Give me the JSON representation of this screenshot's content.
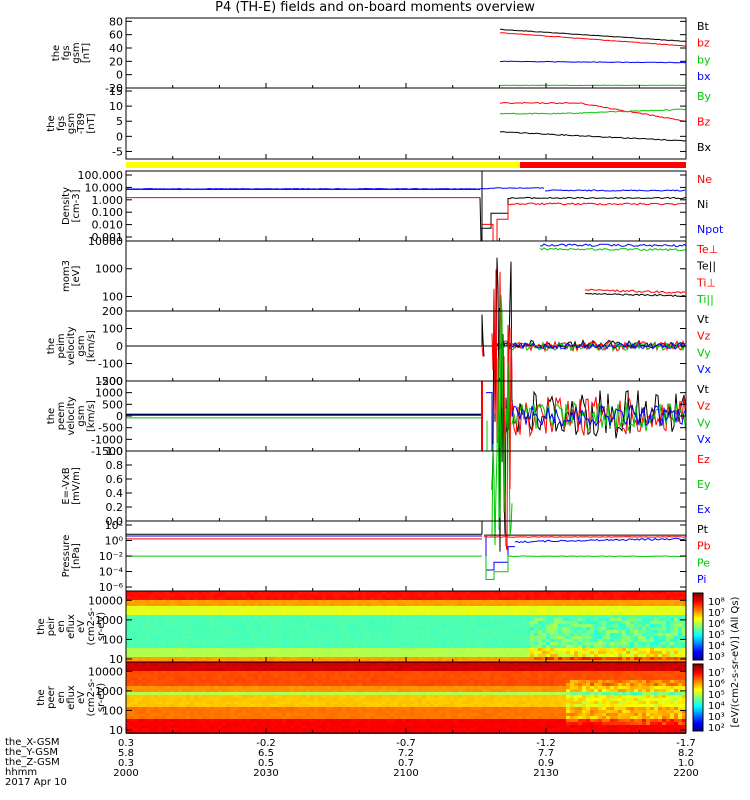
{
  "title": "P4 (TH-E) fields and on-board moments overview",
  "date_label": "2017 Apr 10",
  "colors": {
    "black": "#000000",
    "red": "#ff0000",
    "green": "#00c800",
    "blue": "#0000ff",
    "yellow": "#ffff00"
  },
  "chart_data": [
    {
      "type": "line",
      "panel": "fgs_gsm",
      "ylabel": [
        "the",
        "fgs",
        "gsm",
        "[nT]"
      ],
      "yticks": [
        80,
        60,
        40,
        20,
        0,
        -20
      ],
      "ylim": [
        -20,
        85
      ],
      "series": [
        {
          "name": "Bt",
          "color": "#000000"
        },
        {
          "name": "bz",
          "color": "#ff0000"
        },
        {
          "name": "by",
          "color": "#00c800"
        },
        {
          "name": "bx",
          "color": "#0000ff"
        }
      ]
    },
    {
      "type": "line",
      "panel": "fgs_gsm_dtrend",
      "ylabel": [
        "the",
        "fgs",
        "gsm",
        "-T89",
        "[nT]"
      ],
      "yticks": [
        15,
        10,
        5,
        0,
        -5
      ],
      "ylim": [
        -7.5,
        16
      ],
      "series": [
        {
          "name": "By",
          "color": "#00c800"
        },
        {
          "name": "Bz",
          "color": "#ff0000"
        },
        {
          "name": "Bx",
          "color": "#000000"
        }
      ]
    },
    {
      "type": "line",
      "panel": "density",
      "ylabel": [
        "Density",
        "[cm-3]"
      ],
      "yticks": [
        "100.000",
        "10.000",
        "1.000",
        "0.100",
        "0.010",
        "0.001"
      ],
      "ylim": [
        0.001,
        300
      ],
      "scale": "log",
      "series": [
        {
          "name": "Ne",
          "color": "#ff0000"
        },
        {
          "name": "Ni",
          "color": "#000000"
        },
        {
          "name": "Npot",
          "color": "#0000ff"
        }
      ]
    },
    {
      "type": "line",
      "panel": "temperature",
      "ylabel": [
        "mom3",
        "[eV]"
      ],
      "yticks": [
        10000,
        1000,
        100
      ],
      "ylim": [
        30,
        10000
      ],
      "scale": "log",
      "series": [
        {
          "name": "Te⊥",
          "color": "#ff0000"
        },
        {
          "name": "Te||",
          "color": "#000000"
        },
        {
          "name": "Ti⊥",
          "color": "#ff0000"
        },
        {
          "name": "Ti||",
          "color": "#00c800"
        }
      ]
    },
    {
      "type": "line",
      "panel": "peim_velocity",
      "ylabel": [
        "the",
        "peim",
        "velocity",
        "gsm",
        "[km/s]"
      ],
      "yticks": [
        200,
        100,
        0,
        -100,
        -200
      ],
      "ylim": [
        -200,
        200
      ],
      "series": [
        {
          "name": "Vt",
          "color": "#000000"
        },
        {
          "name": "Vz",
          "color": "#ff0000"
        },
        {
          "name": "Vy",
          "color": "#00c800"
        },
        {
          "name": "Vx",
          "color": "#0000ff"
        }
      ]
    },
    {
      "type": "line",
      "panel": "peem_velocity",
      "ylabel": [
        "the",
        "peem",
        "velocity",
        "gsm",
        "[km/s]"
      ],
      "yticks": [
        1500,
        1000,
        500,
        0,
        -500,
        -1000,
        -1500
      ],
      "ylim": [
        -1500,
        1500
      ],
      "series": [
        {
          "name": "Vt",
          "color": "#000000"
        },
        {
          "name": "Vz",
          "color": "#ff0000"
        },
        {
          "name": "Vy",
          "color": "#00c800"
        },
        {
          "name": "Vx",
          "color": "#0000ff"
        }
      ]
    },
    {
      "type": "line",
      "panel": "efield",
      "ylabel": [
        "E=-VxB",
        "[mV/m]"
      ],
      "yticks": [
        "1.0",
        "0.8",
        "0.6",
        "0.4",
        "0.2",
        "0.0"
      ],
      "ylim": [
        0,
        1
      ],
      "series": [
        {
          "name": "Ez",
          "color": "#ff0000"
        },
        {
          "name": "Ey",
          "color": "#00c800"
        },
        {
          "name": "Ex",
          "color": "#0000ff"
        }
      ]
    },
    {
      "type": "line",
      "panel": "pressure",
      "ylabel": [
        "Pressure",
        "[nPa]"
      ],
      "yticks": [
        "10²",
        "10⁰",
        "10⁻²",
        "10⁻⁴",
        "10⁻⁶"
      ],
      "ylim": [
        1e-07,
        100
      ],
      "scale": "log",
      "series": [
        {
          "name": "Pt",
          "color": "#000000"
        },
        {
          "name": "Pb",
          "color": "#ff0000"
        },
        {
          "name": "Pe",
          "color": "#00c800"
        },
        {
          "name": "Pi",
          "color": "#0000ff"
        }
      ]
    },
    {
      "type": "heatmap",
      "panel": "peir_en_eflux",
      "ylabel": [
        "the",
        "peir",
        "en",
        "eflux",
        "eV",
        "(cm2-s-",
        "sr-eV)"
      ],
      "yticks": [
        10000,
        1000,
        100,
        10
      ],
      "ylim": [
        7,
        30000
      ],
      "scale": "log",
      "colorbar_ticks": [
        "10⁸",
        "10⁷",
        "10⁶",
        "10⁵",
        "10⁴",
        "10³"
      ],
      "colorbar_label": "[eV/(cm2-s-sr-eV)] (All Qs)"
    },
    {
      "type": "heatmap",
      "panel": "peer_en_eflux",
      "ylabel": [
        "the",
        "peer",
        "en",
        "eflux",
        "eV",
        "(cm2-s-",
        "sr-eV)"
      ],
      "yticks": [
        10000,
        1000,
        100,
        10
      ],
      "ylim": [
        7,
        30000
      ],
      "scale": "log",
      "colorbar_ticks": [
        "10⁷",
        "10⁶",
        "10⁵",
        "10⁴",
        "10³",
        "10²"
      ],
      "colorbar_label": "[eV/(cm2-s-sr-eV)] (All Qs)"
    }
  ],
  "x_axis": {
    "rows": [
      {
        "name": "the_X-GSM",
        "values": [
          "0.3",
          "-0.2",
          "-0.7",
          "-1.2",
          "-1.7"
        ]
      },
      {
        "name": "the_Y-GSM",
        "values": [
          "5.8",
          "6.5",
          "7.2",
          "7.7",
          "8.2"
        ]
      },
      {
        "name": "the_Z-GSM",
        "values": [
          "0.3",
          "0.5",
          "0.7",
          "0.9",
          "1.0"
        ]
      },
      {
        "name": "hhmm",
        "values": [
          "2000",
          "2030",
          "2100",
          "2130",
          "2200"
        ]
      }
    ]
  }
}
